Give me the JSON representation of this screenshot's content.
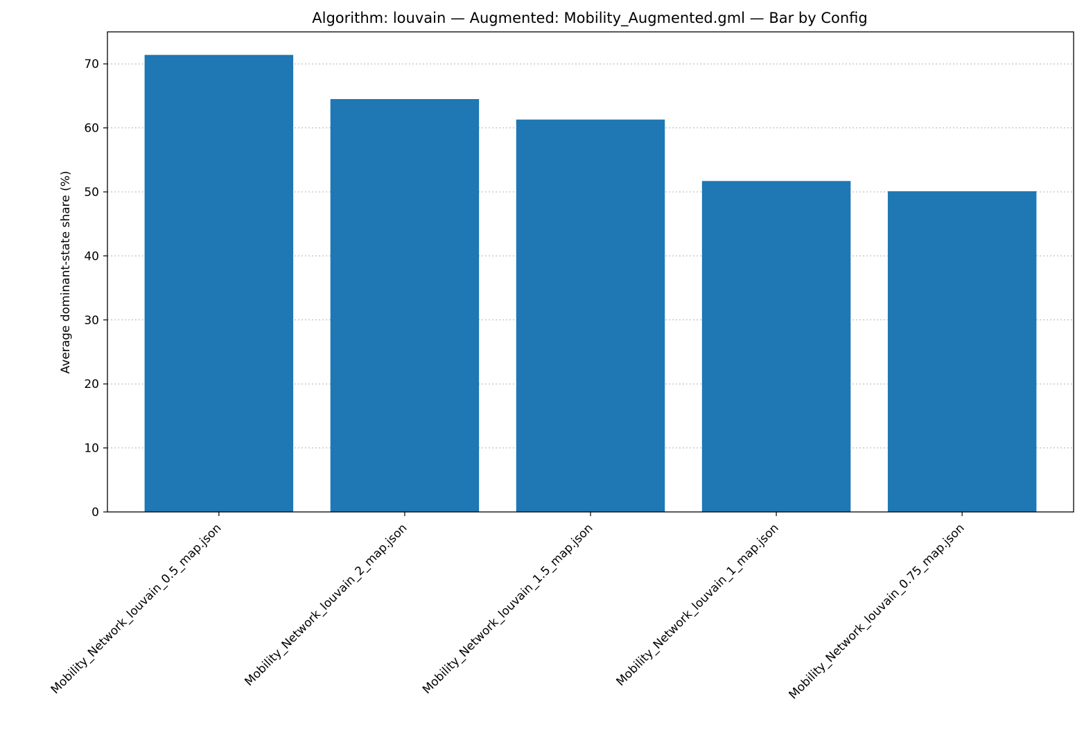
{
  "chart_data": {
    "type": "bar",
    "title": "Algorithm: louvain — Augmented: Mobility_Augmented.gml — Bar by Config",
    "xlabel": "",
    "ylabel": "Average dominant-state share (%)",
    "categories": [
      "Mobility_Network_louvain_0.5_map.json",
      "Mobility_Network_louvain_2_map.json",
      "Mobility_Network_louvain_1.5_map.json",
      "Mobility_Network_louvain_1_map.json",
      "Mobility_Network_louvain_0.75_map.json"
    ],
    "values": [
      71.4,
      64.5,
      61.3,
      51.7,
      50.1
    ],
    "ylim": [
      0,
      75
    ],
    "yticks": [
      0,
      10,
      20,
      30,
      40,
      50,
      60,
      70
    ],
    "grid": "y-dotted",
    "bar_color": "#1f77b4"
  }
}
